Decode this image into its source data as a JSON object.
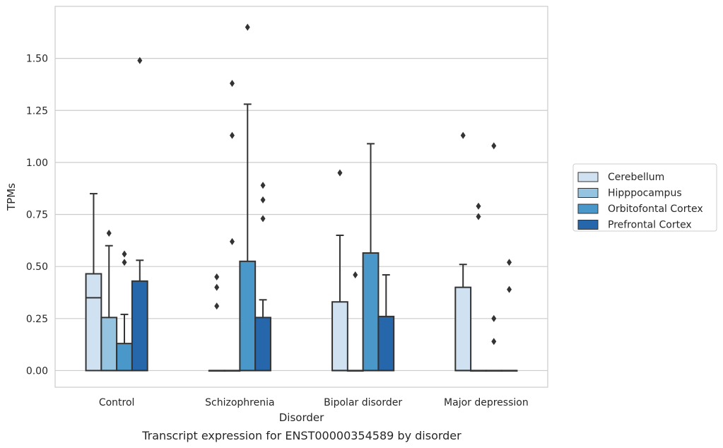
{
  "chart_data": {
    "type": "box",
    "title": "",
    "caption": "Transcript expression for ENST00000354589 by disorder",
    "xlabel": "Disorder",
    "ylabel": "TPMs",
    "ylim": [
      -0.08,
      1.75
    ],
    "yticks": [
      "0.00",
      "0.25",
      "0.50",
      "0.75",
      "1.00",
      "1.25",
      "1.50"
    ],
    "categories": [
      "Control",
      "Schizophrenia",
      "Bipolar disorder",
      "Major depression"
    ],
    "grid": true,
    "legend_position": "right",
    "series": [
      {
        "name": "Cerebellum",
        "color": "#d0e1f2",
        "boxes": [
          {
            "q1": 0.0,
            "median": 0.35,
            "q3": 0.465,
            "whisker_low": 0.0,
            "whisker_high": 0.85,
            "outliers": []
          },
          {
            "q1": 0.0,
            "median": 0.0,
            "q3": 0.0,
            "whisker_low": 0.0,
            "whisker_high": 0.0,
            "outliers": [
              0.31,
              0.4,
              0.45
            ]
          },
          {
            "q1": 0.0,
            "median": 0.0,
            "q3": 0.33,
            "whisker_low": 0.0,
            "whisker_high": 0.65,
            "outliers": [
              0.95
            ]
          },
          {
            "q1": 0.0,
            "median": 0.0,
            "q3": 0.4,
            "whisker_low": 0.0,
            "whisker_high": 0.51,
            "outliers": [
              1.13
            ]
          }
        ]
      },
      {
        "name": "Hipppocampus",
        "color": "#94c4df",
        "boxes": [
          {
            "q1": 0.0,
            "median": 0.0,
            "q3": 0.255,
            "whisker_low": 0.0,
            "whisker_high": 0.6,
            "outliers": [
              0.66
            ]
          },
          {
            "q1": 0.0,
            "median": 0.0,
            "q3": 0.0,
            "whisker_low": 0.0,
            "whisker_high": 0.0,
            "outliers": [
              0.62,
              1.13,
              1.38
            ]
          },
          {
            "q1": 0.0,
            "median": 0.0,
            "q3": 0.0,
            "whisker_low": 0.0,
            "whisker_high": 0.0,
            "outliers": [
              0.46
            ]
          },
          {
            "q1": 0.0,
            "median": 0.0,
            "q3": 0.0,
            "whisker_low": 0.0,
            "whisker_high": 0.0,
            "outliers": [
              0.74,
              0.79
            ]
          }
        ]
      },
      {
        "name": "Orbitofontal Cortex",
        "color": "#4a98c9",
        "boxes": [
          {
            "q1": 0.0,
            "median": 0.0,
            "q3": 0.13,
            "whisker_low": 0.0,
            "whisker_high": 0.27,
            "outliers": [
              0.52,
              0.56
            ]
          },
          {
            "q1": 0.0,
            "median": 0.0,
            "q3": 0.525,
            "whisker_low": 0.0,
            "whisker_high": 1.28,
            "outliers": [
              1.65
            ]
          },
          {
            "q1": 0.0,
            "median": 0.0,
            "q3": 0.565,
            "whisker_low": 0.0,
            "whisker_high": 1.09,
            "outliers": []
          },
          {
            "q1": 0.0,
            "median": 0.0,
            "q3": 0.0,
            "whisker_low": 0.0,
            "whisker_high": 0.0,
            "outliers": [
              0.14,
              0.25,
              1.08
            ]
          }
        ]
      },
      {
        "name": "Prefrontal Cortex",
        "color": "#2666ab",
        "boxes": [
          {
            "q1": 0.0,
            "median": 0.0,
            "q3": 0.43,
            "whisker_low": 0.0,
            "whisker_high": 0.53,
            "outliers": [
              1.49
            ]
          },
          {
            "q1": 0.0,
            "median": 0.0,
            "q3": 0.255,
            "whisker_low": 0.0,
            "whisker_high": 0.34,
            "outliers": [
              0.73,
              0.82,
              0.89
            ]
          },
          {
            "q1": 0.0,
            "median": 0.0,
            "q3": 0.26,
            "whisker_low": 0.0,
            "whisker_high": 0.46,
            "outliers": []
          },
          {
            "q1": 0.0,
            "median": 0.0,
            "q3": 0.0,
            "whisker_low": 0.0,
            "whisker_high": 0.0,
            "outliers": [
              0.39,
              0.52
            ]
          }
        ]
      }
    ]
  }
}
